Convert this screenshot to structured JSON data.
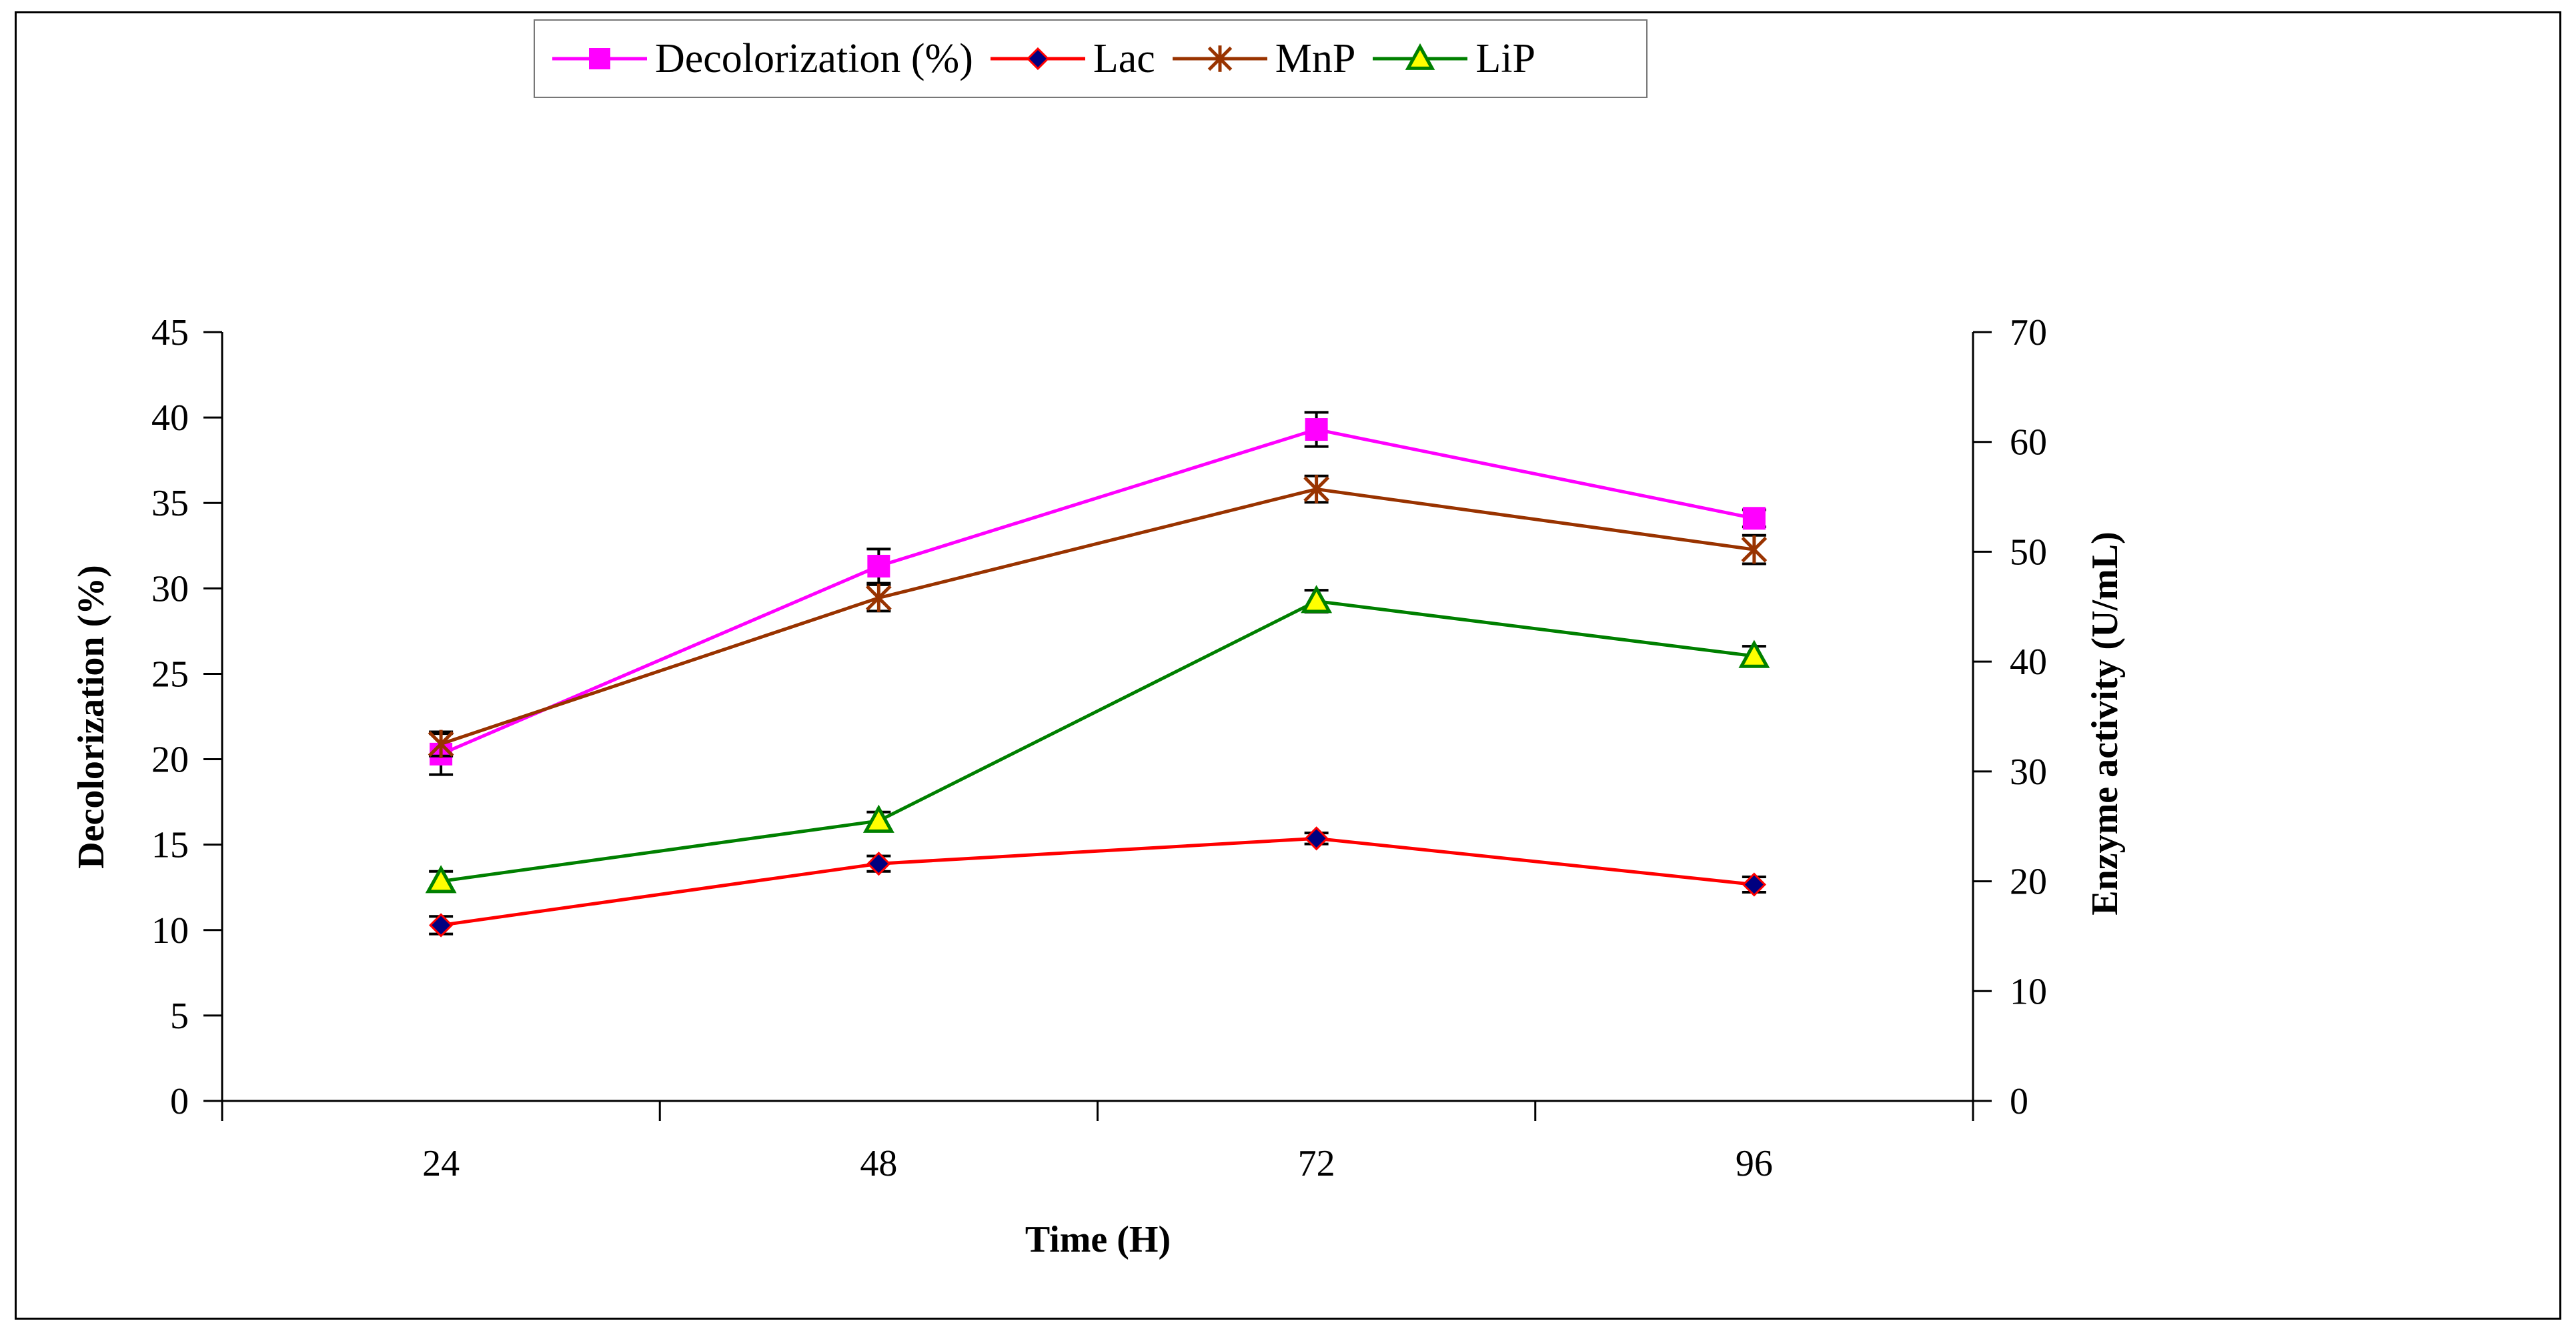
{
  "chart_data": {
    "type": "line",
    "title": "",
    "xlabel": "Time (H)",
    "ylabel_left": "Decolorization (%)",
    "ylabel_right": "Enzyme activity (U/mL)",
    "categories": [
      "24",
      "48",
      "72",
      "96"
    ],
    "ylim_left": [
      0,
      45
    ],
    "yticks_left": [
      "0",
      "5",
      "10",
      "15",
      "20",
      "25",
      "30",
      "35",
      "40",
      "45"
    ],
    "ylim_right": [
      0,
      70
    ],
    "yticks_right": [
      "0",
      "10",
      "20",
      "30",
      "40",
      "50",
      "60",
      "70"
    ],
    "grid": false,
    "legend_position": "top",
    "series": [
      {
        "name": "Decolorization (%)",
        "axis": "left",
        "color": "#ff00ff",
        "marker": "square",
        "values": [
          20.3,
          31.3,
          39.3,
          34.1
        ],
        "errors": [
          1.2,
          1.0,
          1.0,
          0.5
        ]
      },
      {
        "name": "Lac",
        "axis": "right",
        "color": "#ff0000",
        "marker": "diamond",
        "values": [
          16.0,
          21.6,
          23.9,
          19.7
        ],
        "errors": [
          0.8,
          0.7,
          0.5,
          0.7
        ]
      },
      {
        "name": "MnP",
        "axis": "right",
        "color": "#993300",
        "marker": "star",
        "values": [
          32.5,
          45.8,
          55.7,
          50.2
        ],
        "errors": [
          1.1,
          1.2,
          1.2,
          1.3
        ]
      },
      {
        "name": "LiP",
        "axis": "right",
        "color": "#008000",
        "marker": "triangle",
        "values": [
          20.0,
          25.5,
          45.5,
          40.5
        ],
        "errors": [
          0.9,
          0.8,
          1.0,
          0.9
        ]
      }
    ]
  }
}
